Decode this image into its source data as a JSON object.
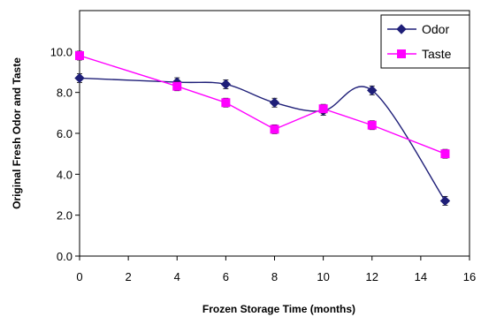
{
  "chart_data": {
    "type": "line",
    "title": "",
    "xlabel": "Frozen Storage Time (months)",
    "ylabel": "Original Fresh Odor and Taste",
    "xlim": [
      0,
      16
    ],
    "ylim": [
      0,
      12
    ],
    "x_ticks": [
      0,
      2,
      4,
      6,
      8,
      10,
      12,
      14,
      16
    ],
    "x_tick_labels": [
      "0",
      "2",
      "4",
      "6",
      "8",
      "10",
      "12",
      "14",
      "16"
    ],
    "y_ticks": [
      0,
      2,
      4,
      6,
      8,
      10
    ],
    "y_tick_labels": [
      "0.0",
      "2.0",
      "4.0",
      "6.0",
      "8.0",
      "10.0"
    ],
    "grid": false,
    "legend_position": "top-right",
    "series": [
      {
        "name": "Odor",
        "color": "#1f1f78",
        "marker": "diamond",
        "smooth": true,
        "x": [
          0,
          4,
          6,
          8,
          10,
          12,
          15
        ],
        "values": [
          8.7,
          8.5,
          8.4,
          7.5,
          7.1,
          8.1,
          2.7
        ]
      },
      {
        "name": "Taste",
        "color": "#ff00ff",
        "marker": "square",
        "smooth": false,
        "x": [
          0,
          4,
          6,
          8,
          10,
          12,
          15
        ],
        "values": [
          9.8,
          8.3,
          7.5,
          6.2,
          7.2,
          6.4,
          5.0
        ]
      }
    ]
  }
}
